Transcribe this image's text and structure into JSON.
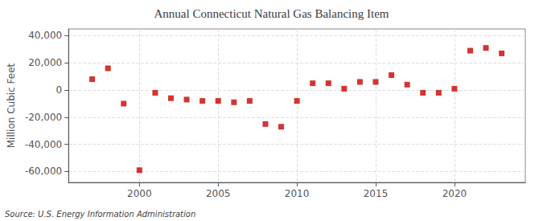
{
  "chart_data": {
    "type": "scatter",
    "title": "Annual Connecticut Natural Gas Balancing Item",
    "ylabel": "Million Cubic Feet",
    "annotations": [
      "Source: U.S. Energy Information Administration"
    ],
    "x": [
      1997,
      1998,
      1999,
      2000,
      2001,
      2002,
      2003,
      2004,
      2005,
      2006,
      2007,
      2008,
      2009,
      2010,
      2011,
      2012,
      2013,
      2014,
      2015,
      2016,
      2017,
      2018,
      2019,
      2020,
      2021,
      2022,
      2023
    ],
    "values": [
      8000,
      16000,
      -10000,
      -59000,
      -2000,
      -6000,
      -7000,
      -8000,
      -8000,
      -9000,
      -8000,
      -25000,
      -27000,
      -8000,
      5000,
      5000,
      1000,
      6000,
      6000,
      11000,
      4000,
      -2000,
      -2000,
      1000,
      29000,
      31000,
      27000
    ],
    "color": "#cc0000",
    "marker": "square",
    "xlim": [
      1995.5,
      2024.5
    ],
    "xticks": [
      2000,
      2005,
      2010,
      2015,
      2020
    ],
    "ylim": [
      -68000,
      45000
    ],
    "yticks": [
      {
        "value": -60000,
        "label": "-60,000"
      },
      {
        "value": -40000,
        "label": "-40,000"
      },
      {
        "value": -20000,
        "label": "-20,000"
      },
      0,
      {
        "value": 20000,
        "label": "20,000"
      },
      {
        "value": 40000,
        "label": "40,000"
      }
    ],
    "grid": true
  }
}
